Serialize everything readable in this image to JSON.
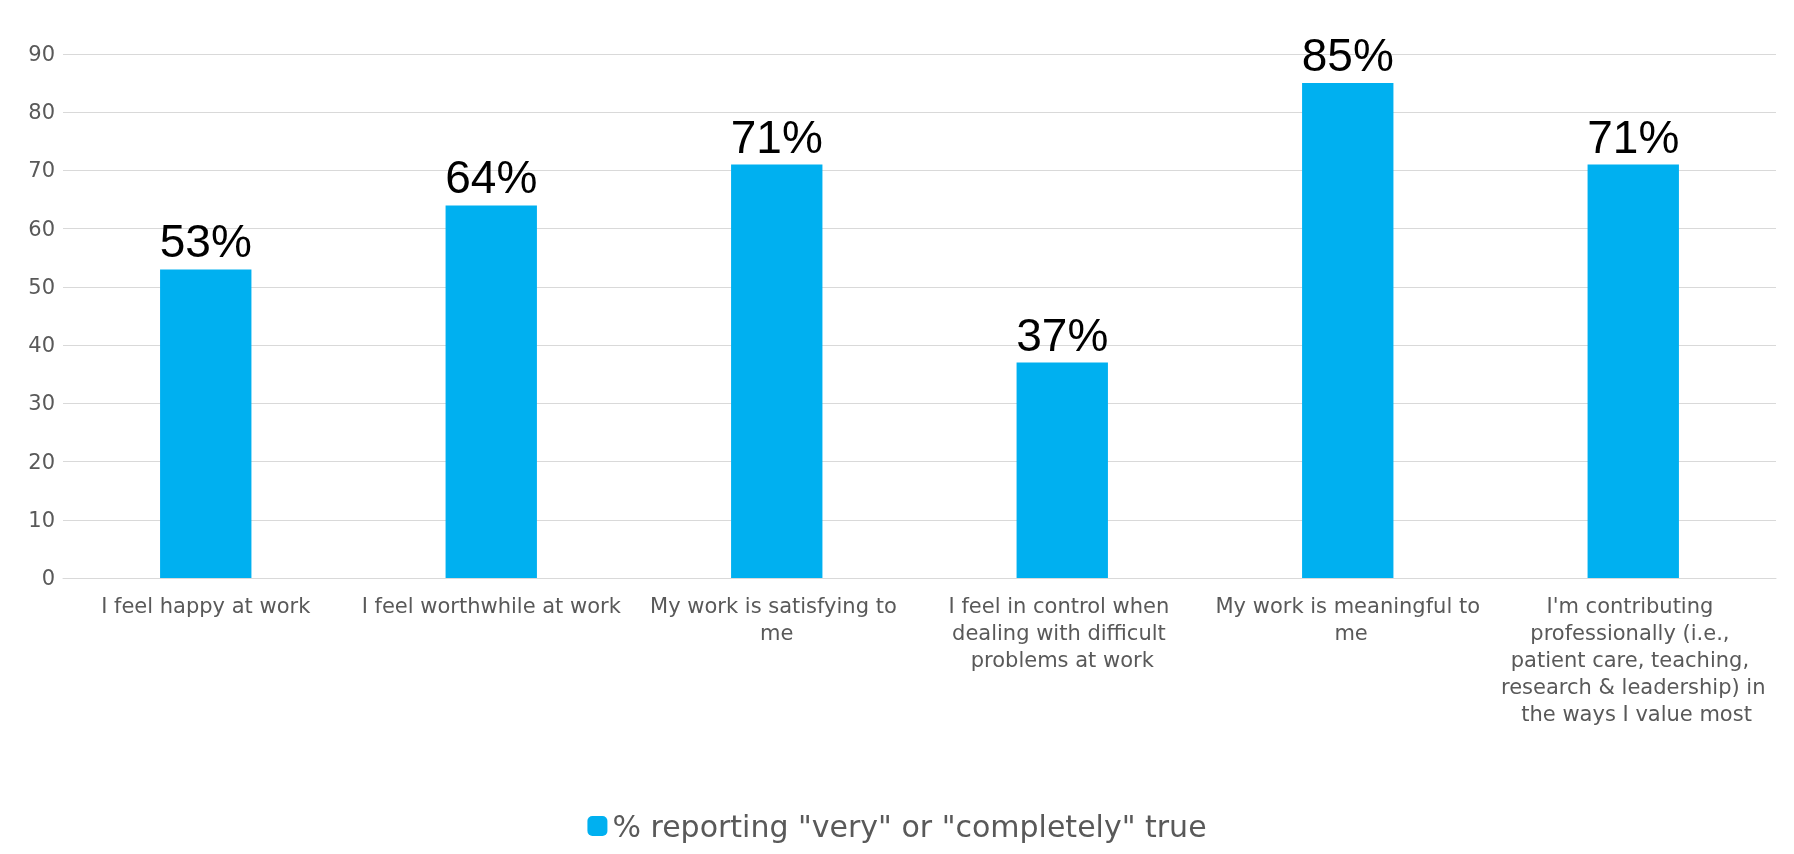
{
  "chart_data": {
    "type": "bar",
    "categories": [
      "I feel happy at work",
      "I feel worthwhile at work",
      "My work is satisfying to me",
      "I feel in control when dealing with difficult problems at work",
      "My work is meaningful to me",
      "I'm contributing professionally (i.e., patient care, teaching, research & leadership) in the ways I value most"
    ],
    "series": [
      {
        "name": "% reporting \"very\" or \"completely\" true",
        "color": "#00b0f0",
        "values": [
          53,
          64,
          71,
          37,
          85,
          71
        ],
        "value_labels": [
          "53%",
          "64%",
          "71%",
          "37%",
          "85%",
          "71%"
        ]
      }
    ],
    "ylim": [
      0,
      90
    ],
    "yticks": [
      0,
      10,
      20,
      30,
      40,
      50,
      60,
      70,
      80,
      90
    ],
    "grid": "y",
    "legend": "bottom"
  }
}
